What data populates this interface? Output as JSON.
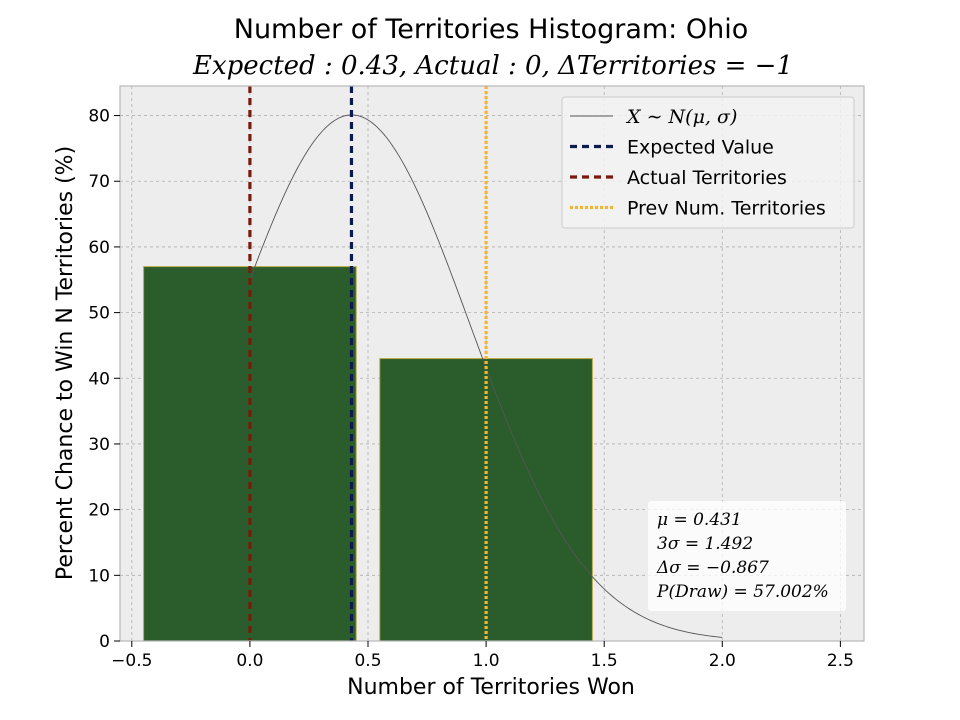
{
  "chart_data": {
    "type": "bar",
    "title": "Number of Territories Histogram: Ohio",
    "subtitle": "Expected : 0.43, Actual : 0, ΔTerritories = −1",
    "xlabel": "Number of Territories Won",
    "ylabel": "Percent Chance to Win N Territories (%)",
    "xlim": [
      -0.55,
      2.6
    ],
    "ylim": [
      0,
      84.5
    ],
    "xticks": [
      -0.5,
      0.0,
      0.5,
      1.0,
      1.5,
      2.0,
      2.5
    ],
    "xtick_labels": [
      "−0.5",
      "0.0",
      "0.5",
      "1.0",
      "1.5",
      "2.0",
      "2.5"
    ],
    "yticks": [
      0,
      10,
      20,
      30,
      40,
      50,
      60,
      70,
      80
    ],
    "ytick_labels": [
      "0",
      "10",
      "20",
      "30",
      "40",
      "50",
      "60",
      "70",
      "80"
    ],
    "grid": true,
    "categories": [
      0,
      1
    ],
    "values": [
      57.0,
      43.0
    ],
    "bar_width": 0.9,
    "bar_color": "#2a5d2b",
    "bar_edge_color": "#b5a642",
    "normal_curve": {
      "mu": 0.431,
      "sigma": 0.497,
      "peak": 80.1,
      "x_start": 0.0,
      "x_end": 2.0,
      "color": "#555555"
    },
    "vlines": [
      {
        "name": "Expected Value",
        "x": 0.43,
        "color": "#0c1a4d",
        "style": "dashed"
      },
      {
        "name": "Actual Territories",
        "x": 0,
        "color": "#7a1a0c",
        "style": "dashed"
      },
      {
        "name": "Prev Num. Territories",
        "x": 1,
        "color": "#f6b531",
        "style": "dotted"
      }
    ],
    "legend": {
      "placement": "top-right",
      "entries": [
        {
          "label": "X ∼ N(μ, σ)",
          "kind": "curve",
          "color": "#555555"
        },
        {
          "label": "Expected Value",
          "kind": "dashed",
          "color": "#0c1a4d"
        },
        {
          "label": "Actual Territories",
          "kind": "dashed",
          "color": "#7a1a0c"
        },
        {
          "label": "Prev Num. Territories",
          "kind": "dotted",
          "color": "#f6b531"
        }
      ]
    },
    "stats": {
      "placement": "bottom-right",
      "lines": [
        "μ = 0.431",
        "3σ = 1.492",
        "Δσ = −0.867",
        "P(Draw) = 57.002%"
      ]
    }
  },
  "colors": {
    "plot_background": "#ededed",
    "grid": "#b0b0b0",
    "frame": "#b8b8b8"
  }
}
